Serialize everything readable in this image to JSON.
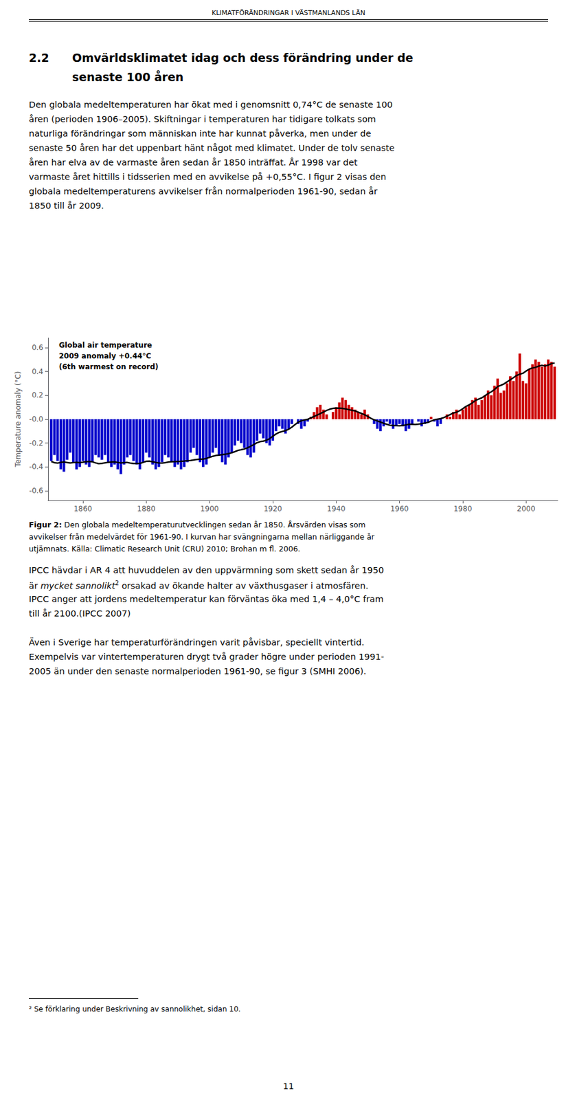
{
  "page": {
    "header": "KLIMATFÖRÄNDRINGAR I VÄSTMANLANDS LÄN",
    "section_number": "2.2",
    "section_title": [
      "Omvärldsklimatet idag och dess förändring under de",
      "senaste 100 åren"
    ],
    "paragraph_1": [
      "Den globala medeltemperaturen har ökat med i genomsnitt 0,74°C de senaste 100",
      "åren (perioden 1906–2005). Skiftningar i temperaturen har tidigare tolkats som",
      "naturliga förändringar som människan inte har kunnat påverka, men under de",
      "senaste 50 åren har det uppenbart hänt något med klimatet. Under de tolv senaste",
      "åren har elva av de varmaste åren sedan år 1850 inträffat. År 1998 var det",
      "varmaste året hittills i tidsserien med en avvikelse på +0,55°C. I figur 2 visas den",
      "globala medeltemperaturens avvikelser från normalperioden 1961-90, sedan år",
      "1850 till år 2009."
    ],
    "caption": [
      [
        {
          "text": "Figur 2:",
          "style": "bold"
        },
        {
          "text": " Den globala medeltemperaturutvecklingen sedan år 1850. Årsvärden visas som"
        }
      ],
      "avvikelser från medelvärdet för 1961-90. I kurvan har svängningarna mellan närliggande år",
      "utjämnats. Källa: Climatic Research Unit (CRU) 2010; Brohan m fl. 2006."
    ],
    "paragraph_2": [
      "IPCC hävdar i AR 4 att huvuddelen av den uppvärmning som skett sedan år 1950",
      [
        {
          "text": "är "
        },
        {
          "text": "mycket sannolikt",
          "style": "italic"
        },
        {
          "text": "2",
          "style": "superscript"
        },
        {
          "text": " orsakad av ökande halter av växthusgaser i atmosfären."
        }
      ],
      "IPCC anger att jordens medeltemperatur kan förväntas öka med 1,4 – 4,0°C fram",
      "till år 2100.(IPCC 2007)"
    ],
    "paragraph_3": [
      "Även i Sverige har temperaturförändringen varit påvisbar, speciellt vintertid.",
      "Exempelvis var vintertemperaturen drygt två grader högre under perioden 1991-",
      "2005 än under den senaste normalperioden 1961-90, se figur 3 (SMHI 2006)."
    ],
    "footnote": "²  Se förklaring under Beskrivning av sannolikhet, sidan 10.",
    "page_number": "11"
  },
  "chart_data": {
    "type": "bar",
    "annotations": [
      "Global air temperature",
      "2009 anomaly +0.44°C",
      "(6th warmest on record)"
    ],
    "ylabel": "Temperature anomaly (°C)",
    "x": [
      1850,
      1851,
      1852,
      1853,
      1854,
      1855,
      1856,
      1857,
      1858,
      1859,
      1860,
      1861,
      1862,
      1863,
      1864,
      1865,
      1866,
      1867,
      1868,
      1869,
      1870,
      1871,
      1872,
      1873,
      1874,
      1875,
      1876,
      1877,
      1878,
      1879,
      1880,
      1881,
      1882,
      1883,
      1884,
      1885,
      1886,
      1887,
      1888,
      1889,
      1890,
      1891,
      1892,
      1893,
      1894,
      1895,
      1896,
      1897,
      1898,
      1899,
      1900,
      1901,
      1902,
      1903,
      1904,
      1905,
      1906,
      1907,
      1908,
      1909,
      1910,
      1911,
      1912,
      1913,
      1914,
      1915,
      1916,
      1917,
      1918,
      1919,
      1920,
      1921,
      1922,
      1923,
      1924,
      1925,
      1926,
      1927,
      1928,
      1929,
      1930,
      1931,
      1932,
      1933,
      1934,
      1935,
      1936,
      1937,
      1938,
      1939,
      1940,
      1941,
      1942,
      1943,
      1944,
      1945,
      1946,
      1947,
      1948,
      1949,
      1950,
      1951,
      1952,
      1953,
      1954,
      1955,
      1956,
      1957,
      1958,
      1959,
      1960,
      1961,
      1962,
      1963,
      1964,
      1965,
      1966,
      1967,
      1968,
      1969,
      1970,
      1971,
      1972,
      1973,
      1974,
      1975,
      1976,
      1977,
      1978,
      1979,
      1980,
      1981,
      1982,
      1983,
      1984,
      1985,
      1986,
      1987,
      1988,
      1989,
      1990,
      1991,
      1992,
      1993,
      1994,
      1995,
      1996,
      1997,
      1998,
      1999,
      2000,
      2001,
      2002,
      2003,
      2004,
      2005,
      2006,
      2007,
      2008,
      2009
    ],
    "xlim": [
      1849,
      2010
    ],
    "xticks": [
      1860,
      1880,
      1900,
      1920,
      1940,
      1960,
      1980,
      2000
    ],
    "ylim": [
      -0.68,
      0.68
    ],
    "yticks": [
      -0.6,
      -0.4,
      -0.2,
      {
        "value": 0,
        "label": "-0.0"
      },
      0.2,
      0.4,
      0.6
    ],
    "grid": false,
    "series": [
      {
        "type": "bar",
        "values": [
          -0.35,
          -0.3,
          -0.35,
          -0.42,
          -0.44,
          -0.34,
          -0.28,
          -0.36,
          -0.42,
          -0.4,
          -0.35,
          -0.38,
          -0.4,
          -0.36,
          -0.3,
          -0.32,
          -0.34,
          -0.3,
          -0.36,
          -0.4,
          -0.38,
          -0.42,
          -0.46,
          -0.38,
          -0.32,
          -0.3,
          -0.35,
          -0.38,
          -0.42,
          -0.36,
          -0.28,
          -0.32,
          -0.38,
          -0.42,
          -0.4,
          -0.36,
          -0.3,
          -0.32,
          -0.36,
          -0.4,
          -0.38,
          -0.42,
          -0.4,
          -0.36,
          -0.28,
          -0.24,
          -0.3,
          -0.36,
          -0.4,
          -0.38,
          -0.32,
          -0.28,
          -0.24,
          -0.3,
          -0.36,
          -0.38,
          -0.32,
          -0.28,
          -0.22,
          -0.18,
          -0.2,
          -0.24,
          -0.3,
          -0.32,
          -0.28,
          -0.18,
          -0.12,
          -0.16,
          -0.2,
          -0.22,
          -0.18,
          -0.1,
          -0.06,
          -0.08,
          -0.12,
          -0.08,
          -0.04,
          0.0,
          -0.04,
          -0.08,
          -0.06,
          -0.02,
          0.02,
          0.06,
          0.1,
          0.12,
          0.08,
          0.04,
          0.0,
          0.06,
          0.1,
          0.14,
          0.18,
          0.16,
          0.12,
          0.1,
          0.08,
          0.06,
          0.04,
          0.08,
          0.04,
          0.0,
          -0.04,
          -0.08,
          -0.1,
          -0.06,
          -0.02,
          -0.04,
          -0.08,
          -0.06,
          -0.04,
          -0.06,
          -0.1,
          -0.08,
          -0.04,
          0.0,
          -0.02,
          -0.06,
          -0.04,
          -0.02,
          0.02,
          -0.02,
          -0.06,
          -0.04,
          0.0,
          0.04,
          0.02,
          0.06,
          0.08,
          0.04,
          0.08,
          0.1,
          0.12,
          0.16,
          0.18,
          0.12,
          0.16,
          0.2,
          0.24,
          0.2,
          0.28,
          0.34,
          0.22,
          0.24,
          0.3,
          0.36,
          0.32,
          0.4,
          0.55,
          0.32,
          0.3,
          0.42,
          0.46,
          0.5,
          0.48,
          0.44,
          0.46,
          0.5,
          0.48,
          0.44
        ],
        "colors": [
          "#0000cc",
          "#0000cc",
          "#0000cc",
          "#0000cc",
          "#0000cc",
          "#0000cc",
          "#0000cc",
          "#0000cc",
          "#0000cc",
          "#0000cc",
          "#0000cc",
          "#0000cc",
          "#0000cc",
          "#0000cc",
          "#0000cc",
          "#0000cc",
          "#0000cc",
          "#0000cc",
          "#0000cc",
          "#0000cc",
          "#0000cc",
          "#0000cc",
          "#0000cc",
          "#0000cc",
          "#0000cc",
          "#0000cc",
          "#0000cc",
          "#0000cc",
          "#0000cc",
          "#0000cc",
          "#0000cc",
          "#0000cc",
          "#0000cc",
          "#0000cc",
          "#0000cc",
          "#0000cc",
          "#0000cc",
          "#0000cc",
          "#0000cc",
          "#0000cc",
          "#0000cc",
          "#0000cc",
          "#0000cc",
          "#0000cc",
          "#0000cc",
          "#0000cc",
          "#0000cc",
          "#0000cc",
          "#0000cc",
          "#0000cc",
          "#0000cc",
          "#0000cc",
          "#0000cc",
          "#0000cc",
          "#0000cc",
          "#0000cc",
          "#0000cc",
          "#0000cc",
          "#0000cc",
          "#0000cc",
          "#0000cc",
          "#0000cc",
          "#0000cc",
          "#0000cc",
          "#0000cc",
          "#0000cc",
          "#0000cc",
          "#0000cc",
          "#0000cc",
          "#0000cc",
          "#0000cc",
          "#0000cc",
          "#0000cc",
          "#0000cc",
          "#0000cc",
          "#0000cc",
          "#0000cc",
          "#cc0000",
          "#0000cc",
          "#0000cc",
          "#0000cc",
          "#0000cc",
          "#cc0000",
          "#cc0000",
          "#cc0000",
          "#cc0000",
          "#cc0000",
          "#cc0000",
          "#cc0000",
          "#cc0000",
          "#cc0000",
          "#cc0000",
          "#cc0000",
          "#cc0000",
          "#cc0000",
          "#cc0000",
          "#cc0000",
          "#cc0000",
          "#cc0000",
          "#cc0000",
          "#cc0000",
          "#cc0000",
          "#0000cc",
          "#0000cc",
          "#0000cc",
          "#0000cc",
          "#0000cc",
          "#0000cc",
          "#0000cc",
          "#0000cc",
          "#0000cc",
          "#0000cc",
          "#0000cc",
          "#0000cc",
          "#0000cc",
          "#cc0000",
          "#0000cc",
          "#0000cc",
          "#0000cc",
          "#0000cc",
          "#cc0000",
          "#0000cc",
          "#0000cc",
          "#0000cc",
          "#cc0000",
          "#cc0000",
          "#cc0000",
          "#cc0000",
          "#cc0000",
          "#cc0000",
          "#cc0000",
          "#cc0000",
          "#cc0000",
          "#cc0000",
          "#cc0000",
          "#cc0000",
          "#cc0000",
          "#cc0000",
          "#cc0000",
          "#cc0000",
          "#cc0000",
          "#cc0000",
          "#cc0000",
          "#cc0000",
          "#cc0000",
          "#cc0000",
          "#cc0000",
          "#cc0000",
          "#cc0000",
          "#cc0000",
          "#cc0000",
          "#cc0000",
          "#cc0000",
          "#cc0000",
          "#cc0000",
          "#cc0000",
          "#cc0000",
          "#cc0000",
          "#cc0000",
          "#cc0000"
        ]
      },
      {
        "type": "line",
        "color": "#000000",
        "values": [
          -0.3547,
          -0.364,
          -0.368,
          -0.362,
          -0.3593,
          -0.3627,
          -0.3667,
          -0.3633,
          -0.3613,
          -0.364,
          -0.3607,
          -0.3567,
          -0.354,
          -0.3567,
          -0.366,
          -0.3727,
          -0.37,
          -0.3647,
          -0.3613,
          -0.3593,
          -0.358,
          -0.362,
          -0.366,
          -0.3633,
          -0.362,
          -0.3673,
          -0.3713,
          -0.3713,
          -0.37,
          -0.362,
          -0.3527,
          -0.3513,
          -0.3567,
          -0.362,
          -0.3667,
          -0.368,
          -0.364,
          -0.3587,
          -0.356,
          -0.3547,
          -0.3533,
          -0.352,
          -0.3507,
          -0.348,
          -0.3467,
          -0.3413,
          -0.3373,
          -0.3347,
          -0.3347,
          -0.328,
          -0.32,
          -0.3107,
          -0.304,
          -0.3013,
          -0.2973,
          -0.2933,
          -0.288,
          -0.2813,
          -0.272,
          -0.2613,
          -0.256,
          -0.2493,
          -0.24,
          -0.2267,
          -0.212,
          -0.1973,
          -0.188,
          -0.184,
          -0.176,
          -0.1627,
          -0.1427,
          -0.124,
          -0.1107,
          -0.1027,
          -0.096,
          -0.084,
          -0.0667,
          -0.0453,
          -0.0253,
          -0.0133,
          -0.0067,
          -0.0013,
          0.0107,
          0.0227,
          0.0347,
          0.0467,
          0.06,
          0.0733,
          0.084,
          0.0907,
          0.0933,
          0.092,
          0.0907,
          0.0853,
          0.08,
          0.0747,
          0.0693,
          0.0587,
          0.048,
          0.0373,
          0.0227,
          0.0067,
          -0.0053,
          -0.0147,
          -0.024,
          -0.0347,
          -0.0427,
          -0.0507,
          -0.0533,
          -0.0547,
          -0.056,
          -0.0533,
          -0.048,
          -0.0427,
          -0.0427,
          -0.044,
          -0.0413,
          -0.0373,
          -0.032,
          -0.0267,
          -0.016,
          -0.0053,
          0,
          0.0053,
          0.0133,
          0.0253,
          0.0387,
          0.052,
          0.0587,
          0.0707,
          0.088,
          0.1067,
          0.12,
          0.136,
          0.1573,
          0.168,
          0.1787,
          0.196,
          0.2147,
          0.2293,
          0.248,
          0.274,
          0.2833,
          0.2953,
          0.3127,
          0.33,
          0.3473,
          0.366,
          0.3767,
          0.3847,
          0.4033,
          0.4193,
          0.4287,
          0.434,
          0.4447,
          0.4513,
          0.4453,
          0.4533,
          0.4653,
          0.4707
        ]
      }
    ]
  }
}
